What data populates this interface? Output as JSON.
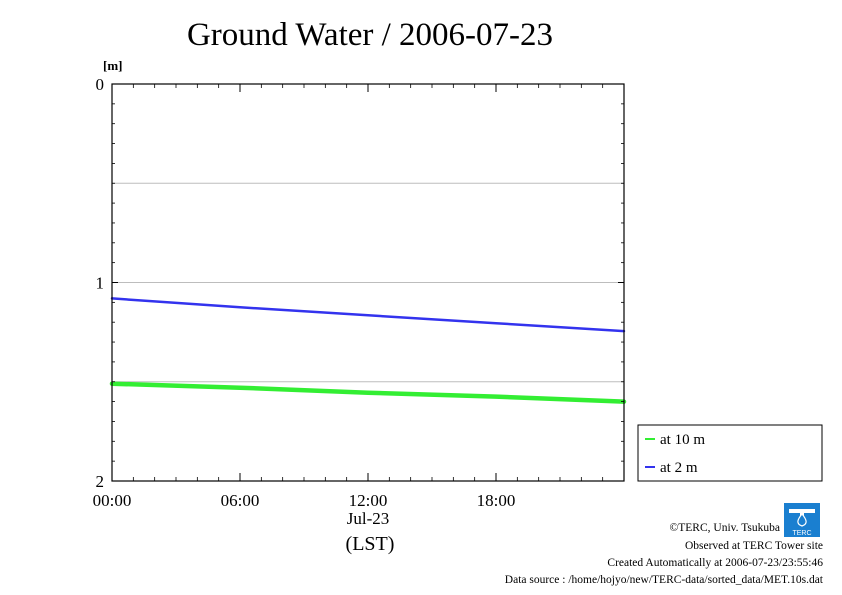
{
  "chart_data": {
    "type": "line",
    "title": "Ground Water / 2006-07-23",
    "ylabel": "[m]",
    "xlabel": "(LST)",
    "date_label": "Jul-23",
    "ylim": [
      0,
      2
    ],
    "y_inverted": true,
    "y_ticks": [
      "0",
      "1",
      "2"
    ],
    "y_grid": [
      0.5,
      1.0,
      1.5
    ],
    "x_range_hours": [
      0,
      24
    ],
    "x_ticks": [
      {
        "hour": 0,
        "label": "00:00"
      },
      {
        "hour": 6,
        "label": "06:00"
      },
      {
        "hour": 12,
        "label": "12:00"
      },
      {
        "hour": 18,
        "label": "18:00"
      }
    ],
    "grid": true,
    "legend_position": "bottom-right",
    "series": [
      {
        "name": "at 10 m",
        "color": "#33ee33",
        "width": 4.5,
        "x": [
          0,
          6,
          12,
          18,
          24
        ],
        "values": [
          1.51,
          1.53,
          1.555,
          1.575,
          1.6
        ]
      },
      {
        "name": "at 2 m",
        "color": "#3333ee",
        "width": 2.5,
        "x": [
          0,
          6,
          12,
          18,
          24
        ],
        "values": [
          1.08,
          1.125,
          1.165,
          1.205,
          1.245
        ]
      }
    ]
  },
  "footer": {
    "copyright": "©TERC, Univ. Tsukuba",
    "observed": "Observed at TERC Tower site",
    "created": "Created Automatically at 2006-07-23/23:55:46",
    "source": "Data source : /home/hojyo/new/TERC-data/sorted_data/MET.10s.dat",
    "logo_text": "TERC"
  }
}
